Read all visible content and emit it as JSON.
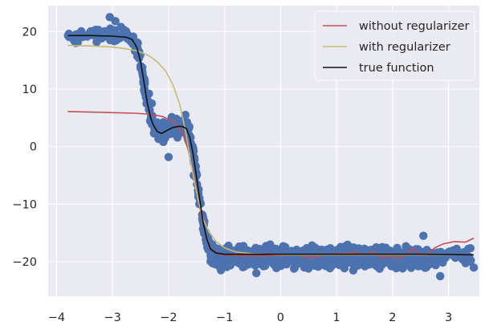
{
  "chart_data": {
    "type": "scatter",
    "title": "",
    "xlabel": "",
    "ylabel": "",
    "xlim": [
      -4.15,
      3.55
    ],
    "ylim": [
      -26,
      24.5
    ],
    "xticks": [
      -4,
      -3,
      -2,
      -1,
      0,
      1,
      2,
      3
    ],
    "yticks": [
      20,
      10,
      0,
      -10,
      -20
    ],
    "xtick_labels": [
      "−4",
      "−3",
      "−2",
      "−1",
      "0",
      "1",
      "2",
      "3"
    ],
    "ytick_labels": [
      "20",
      "10",
      "0",
      "−10",
      "−20"
    ],
    "grid": true,
    "legend_position": "top-right",
    "background_color": "#eaeaf2",
    "scatter": {
      "color": "#4c72b0",
      "x_range": [
        -3.8,
        3.45
      ],
      "description_points": [
        [
          -3.78,
          19.6
        ],
        [
          -3.3,
          20.3
        ],
        [
          -3.05,
          22.5
        ],
        [
          -2.95,
          21.8
        ],
        [
          -2.85,
          20.8
        ],
        [
          -2.7,
          19.2
        ],
        [
          -2.55,
          18.0
        ],
        [
          -2.5,
          14.0
        ],
        [
          -2.45,
          11.0
        ],
        [
          -2.35,
          9.2
        ],
        [
          -2.3,
          7.5
        ],
        [
          -2.2,
          4.2
        ],
        [
          -2.1,
          2.0
        ],
        [
          -2.0,
          -1.8
        ],
        [
          -1.9,
          3.6
        ],
        [
          -1.8,
          3.0
        ],
        [
          -1.7,
          5.5
        ],
        [
          -1.6,
          0.5
        ],
        [
          -1.55,
          -5.0
        ],
        [
          -1.45,
          -10.0
        ],
        [
          -1.35,
          -15.0
        ],
        [
          -1.25,
          -18.0
        ],
        [
          -0.8,
          -19.0
        ],
        [
          0.0,
          -19.3
        ],
        [
          0.6,
          -20.0
        ],
        [
          1.2,
          -18.5
        ],
        [
          1.8,
          -19.5
        ],
        [
          2.4,
          -19.0
        ],
        [
          2.55,
          -15.5
        ],
        [
          2.65,
          -20.5
        ],
        [
          2.85,
          -22.5
        ],
        [
          3.0,
          -18.5
        ],
        [
          3.15,
          -18.3
        ],
        [
          3.45,
          -21.0
        ]
      ]
    },
    "series": [
      {
        "name": "without regularizer",
        "color": "#c44e52",
        "points": [
          [
            -3.8,
            6.1
          ],
          [
            -3.4,
            6.0
          ],
          [
            -3.0,
            5.9
          ],
          [
            -2.6,
            5.8
          ],
          [
            -2.3,
            5.6
          ],
          [
            -2.1,
            5.2
          ],
          [
            -1.9,
            4.3
          ],
          [
            -1.75,
            2.4
          ],
          [
            -1.65,
            -0.6
          ],
          [
            -1.55,
            -5.0
          ],
          [
            -1.45,
            -10.2
          ],
          [
            -1.35,
            -15.0
          ],
          [
            -1.25,
            -17.7
          ],
          [
            -1.1,
            -18.7
          ],
          [
            -0.9,
            -18.9
          ],
          [
            -0.5,
            -19.0
          ],
          [
            0.0,
            -18.9
          ],
          [
            0.3,
            -18.8
          ],
          [
            0.55,
            -19.3
          ],
          [
            0.75,
            -18.9
          ],
          [
            0.95,
            -18.6
          ],
          [
            1.15,
            -18.6
          ],
          [
            1.35,
            -18.3
          ],
          [
            1.5,
            -18.9
          ],
          [
            1.65,
            -18.2
          ],
          [
            1.8,
            -19.2
          ],
          [
            1.95,
            -19.0
          ],
          [
            2.1,
            -19.5
          ],
          [
            2.25,
            -18.6
          ],
          [
            2.35,
            -17.7
          ],
          [
            2.45,
            -18.4
          ],
          [
            2.6,
            -19.0
          ],
          [
            2.75,
            -17.6
          ],
          [
            2.9,
            -16.9
          ],
          [
            3.1,
            -16.5
          ],
          [
            3.3,
            -16.6
          ],
          [
            3.45,
            -15.9
          ]
        ]
      },
      {
        "name": "with regularizer",
        "color": "#ccb974",
        "points": [
          [
            -3.8,
            17.6
          ],
          [
            -3.4,
            17.5
          ],
          [
            -3.0,
            17.3
          ],
          [
            -2.75,
            17.0
          ],
          [
            -2.55,
            16.6
          ],
          [
            -2.35,
            15.8
          ],
          [
            -2.2,
            14.7
          ],
          [
            -2.05,
            13.1
          ],
          [
            -1.92,
            10.7
          ],
          [
            -1.8,
            7.3
          ],
          [
            -1.7,
            2.8
          ],
          [
            -1.62,
            -1.8
          ],
          [
            -1.54,
            -6.0
          ],
          [
            -1.46,
            -9.8
          ],
          [
            -1.38,
            -12.6
          ],
          [
            -1.28,
            -14.8
          ],
          [
            -1.15,
            -16.5
          ],
          [
            -1.0,
            -17.6
          ],
          [
            -0.8,
            -18.3
          ],
          [
            -0.5,
            -18.6
          ],
          [
            0.0,
            -18.8
          ],
          [
            1.0,
            -18.8
          ],
          [
            2.0,
            -18.8
          ],
          [
            3.45,
            -18.8
          ]
        ]
      },
      {
        "name": "true function",
        "color": "#111111",
        "points": [
          [
            -3.8,
            19.3
          ],
          [
            -3.4,
            19.3
          ],
          [
            -3.0,
            19.2
          ],
          [
            -2.75,
            19.0
          ],
          [
            -2.65,
            18.6
          ],
          [
            -2.57,
            17.3
          ],
          [
            -2.5,
            14.8
          ],
          [
            -2.44,
            11.2
          ],
          [
            -2.38,
            7.6
          ],
          [
            -2.32,
            5.0
          ],
          [
            -2.27,
            3.7
          ],
          [
            -2.2,
            2.6
          ],
          [
            -2.12,
            2.3
          ],
          [
            -2.03,
            2.8
          ],
          [
            -1.93,
            3.3
          ],
          [
            -1.83,
            3.5
          ],
          [
            -1.75,
            3.5
          ],
          [
            -1.68,
            3.1
          ],
          [
            -1.62,
            1.6
          ],
          [
            -1.56,
            -1.4
          ],
          [
            -1.5,
            -5.3
          ],
          [
            -1.44,
            -9.5
          ],
          [
            -1.38,
            -13.3
          ],
          [
            -1.32,
            -16.0
          ],
          [
            -1.25,
            -17.8
          ],
          [
            -1.15,
            -18.5
          ],
          [
            -1.0,
            -18.7
          ],
          [
            -0.5,
            -18.7
          ],
          [
            0.5,
            -18.7
          ],
          [
            1.5,
            -18.7
          ],
          [
            2.5,
            -18.7
          ],
          [
            3.45,
            -18.8
          ]
        ]
      }
    ],
    "legend": [
      "without regularizer",
      "with regularizer",
      "true function"
    ]
  }
}
